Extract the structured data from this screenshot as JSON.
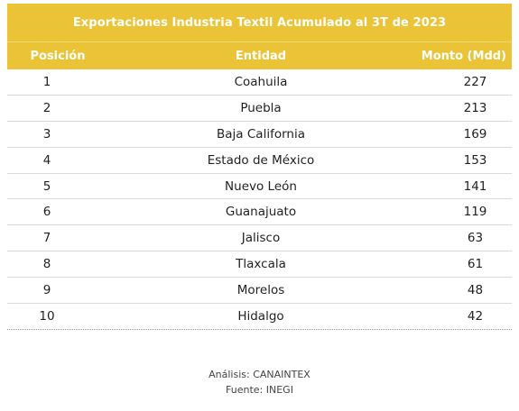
{
  "chart_data": {
    "type": "table",
    "title": "Exportaciones Industria Textil Acumulado al 3T de 2023",
    "columns": [
      "Posición",
      "Entidad",
      "Monto (Mdd)"
    ],
    "rows": [
      {
        "posicion": "1",
        "entidad": "Coahuila",
        "monto": "227"
      },
      {
        "posicion": "2",
        "entidad": "Puebla",
        "monto": "213"
      },
      {
        "posicion": "3",
        "entidad": "Baja California",
        "monto": "169"
      },
      {
        "posicion": "4",
        "entidad": "Estado de México",
        "monto": "153"
      },
      {
        "posicion": "5",
        "entidad": "Nuevo León",
        "monto": "141"
      },
      {
        "posicion": "6",
        "entidad": "Guanajuato",
        "monto": "119"
      },
      {
        "posicion": "7",
        "entidad": "Jalisco",
        "monto": "63"
      },
      {
        "posicion": "8",
        "entidad": "Tlaxcala",
        "monto": "61"
      },
      {
        "posicion": "9",
        "entidad": "Morelos",
        "monto": "48"
      },
      {
        "posicion": "10",
        "entidad": "Hidalgo",
        "monto": "42"
      }
    ],
    "notes": {
      "analisis": "Análisis: CANAINTEX",
      "fuente": "Fuente: INEGI"
    }
  },
  "colors": {
    "header_background": "#EAC336",
    "header_text": "#FFFFFF",
    "row_divider": "#D9D9D9"
  }
}
